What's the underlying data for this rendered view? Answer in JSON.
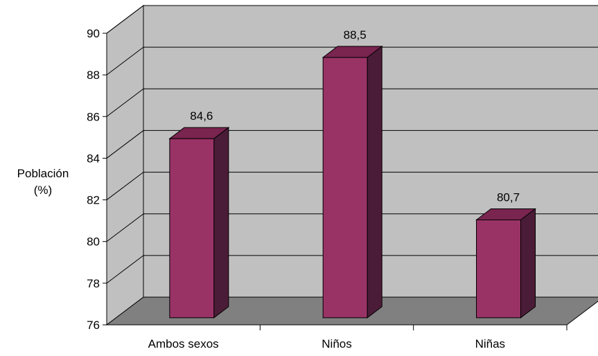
{
  "chart_data": {
    "type": "bar",
    "title": "",
    "xlabel": "",
    "ylabel": "Población (%)",
    "ylabel_lines": [
      "Población",
      "(%)"
    ],
    "categories": [
      "Ambos sexos",
      "Niños",
      "Niñas"
    ],
    "values": [
      84.6,
      88.5,
      80.7
    ],
    "value_labels": [
      "84,6",
      "88,5",
      "80,7"
    ],
    "ylim": [
      76,
      90
    ],
    "yticks": [
      76,
      78,
      80,
      82,
      84,
      86,
      88,
      90
    ],
    "grid": true,
    "legend": "none",
    "style_3d": true
  },
  "colors": {
    "bar_front": "#993366",
    "bar_top": "#7a2450",
    "bar_side": "#4b1c37",
    "back_wall": "#c0c0c0",
    "side_wall": "#c0c0c0",
    "floor": "#808080",
    "gridline": "#000000",
    "axis": "#000000"
  }
}
